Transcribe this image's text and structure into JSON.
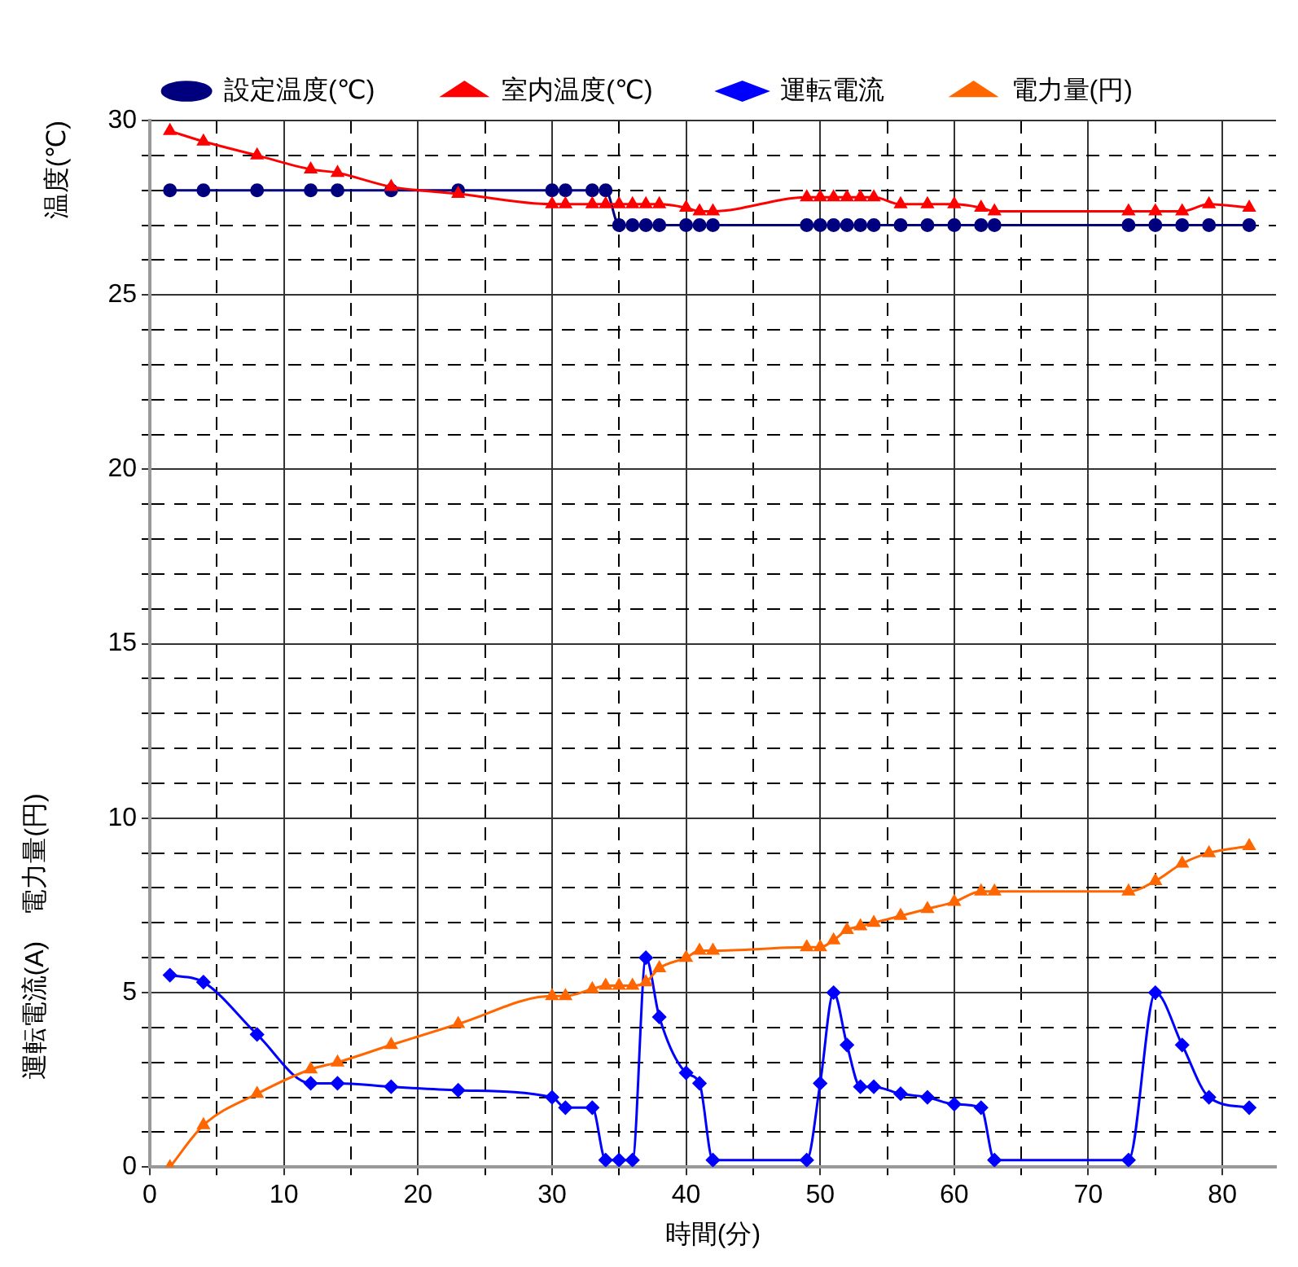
{
  "chart_data": {
    "type": "line",
    "xlabel": "時間(分)",
    "ylabel": "温度(℃)",
    "annotations": [
      "運転電流(A)　電力量(円)"
    ],
    "x": [
      1.5,
      4,
      8,
      12,
      14,
      18,
      23,
      30,
      31,
      33,
      34,
      35,
      36,
      37,
      38,
      40,
      41,
      42,
      49,
      50,
      51,
      52,
      53,
      54,
      56,
      58,
      60,
      62,
      63,
      73,
      75,
      77,
      79,
      82
    ],
    "series": [
      {
        "name": "設定温度(℃)",
        "color": "#00007f",
        "marker": "circle",
        "values": [
          28,
          28,
          28,
          28,
          28,
          28,
          28,
          28,
          28,
          28,
          28,
          27,
          27,
          27,
          27,
          27,
          27,
          27,
          27,
          27,
          27,
          27,
          27,
          27,
          27,
          27,
          27,
          27,
          27,
          27,
          27,
          27,
          27,
          27
        ]
      },
      {
        "name": "室内温度(℃)",
        "color": "#ff0000",
        "marker": "triangle",
        "values": [
          29.7,
          29.4,
          29.0,
          28.6,
          28.5,
          28.1,
          27.9,
          27.6,
          27.6,
          27.6,
          27.6,
          27.6,
          27.6,
          27.6,
          27.6,
          27.5,
          27.4,
          27.4,
          27.8,
          27.8,
          27.8,
          27.8,
          27.8,
          27.8,
          27.6,
          27.6,
          27.6,
          27.5,
          27.4,
          27.4,
          27.4,
          27.4,
          27.6,
          27.5
        ]
      },
      {
        "name": "運転電流",
        "color": "#0000ff",
        "marker": "diamond",
        "values": [
          5.5,
          5.3,
          3.8,
          2.4,
          2.4,
          2.3,
          2.2,
          2.0,
          1.7,
          1.7,
          0.2,
          0.2,
          0.2,
          6.0,
          4.3,
          2.7,
          2.4,
          0.2,
          0.2,
          2.4,
          5.0,
          3.5,
          2.3,
          2.3,
          2.1,
          2.0,
          1.8,
          1.7,
          0.2,
          0.2,
          5.0,
          3.5,
          2.0,
          1.7
        ]
      },
      {
        "name": "電力量(円)",
        "color": "#ff6600",
        "marker": "triangle",
        "values": [
          0,
          1.2,
          2.1,
          2.8,
          3.0,
          3.5,
          4.1,
          4.9,
          4.9,
          5.1,
          5.2,
          5.2,
          5.2,
          5.3,
          5.7,
          6.0,
          6.2,
          6.2,
          6.3,
          6.3,
          6.5,
          6.8,
          6.9,
          7.0,
          7.2,
          7.4,
          7.6,
          7.9,
          7.9,
          7.9,
          8.2,
          8.7,
          9.0,
          9.2
        ]
      }
    ],
    "xlim": [
      0,
      84
    ],
    "xticks": [
      0,
      {
        "value": 5,
        "label": null
      },
      10,
      {
        "value": 15,
        "label": null
      },
      20,
      {
        "value": 25,
        "label": null
      },
      30,
      {
        "value": 35,
        "label": null
      },
      40,
      {
        "value": 45,
        "label": null
      },
      50,
      {
        "value": 55,
        "label": null
      },
      60,
      {
        "value": 65,
        "label": null
      },
      70,
      {
        "value": 75,
        "label": null
      },
      80
    ],
    "ylim": [
      0,
      30
    ],
    "yticks": [
      0,
      {
        "value": 1,
        "label": null
      },
      {
        "value": 2,
        "label": null
      },
      {
        "value": 3,
        "label": null
      },
      {
        "value": 4,
        "label": null
      },
      5,
      {
        "value": 6,
        "label": null
      },
      {
        "value": 7,
        "label": null
      },
      {
        "value": 8,
        "label": null
      },
      {
        "value": 9,
        "label": null
      },
      10,
      {
        "value": 11,
        "label": null
      },
      {
        "value": 12,
        "label": null
      },
      {
        "value": 13,
        "label": null
      },
      {
        "value": 14,
        "label": null
      },
      15,
      {
        "value": 16,
        "label": null
      },
      {
        "value": 17,
        "label": null
      },
      {
        "value": 18,
        "label": null
      },
      {
        "value": 19,
        "label": null
      },
      20,
      {
        "value": 21,
        "label": null
      },
      {
        "value": 22,
        "label": null
      },
      {
        "value": 23,
        "label": null
      },
      {
        "value": 24,
        "label": null
      },
      25,
      {
        "value": 26,
        "label": null
      },
      {
        "value": 27,
        "label": null
      },
      {
        "value": 28,
        "label": null
      },
      {
        "value": 29,
        "label": null
      },
      30
    ],
    "grid": true,
    "legend": "top"
  }
}
